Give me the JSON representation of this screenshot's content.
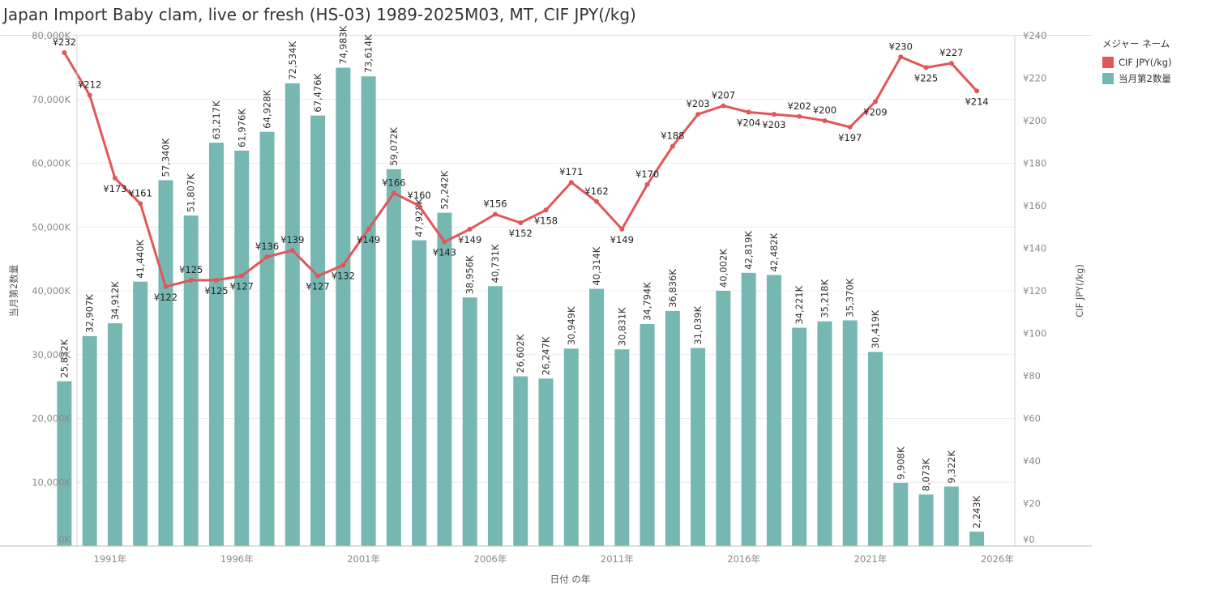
{
  "title": "Japan Import Baby clam, live or fresh (HS-03) 1989-2025M03, MT, CIF JPY(/kg)",
  "legend": {
    "title": "メジャー ネーム",
    "items": [
      {
        "label": "CIF JPY(/kg)",
        "color": "#e15759"
      },
      {
        "label": "当月第2数量",
        "color": "#76b7b2"
      }
    ]
  },
  "chart_data": {
    "type": "bar+line",
    "x": [
      1989,
      1990,
      1991,
      1992,
      1993,
      1994,
      1995,
      1996,
      1997,
      1998,
      1999,
      2000,
      2001,
      2002,
      2003,
      2004,
      2005,
      2006,
      2007,
      2008,
      2009,
      2010,
      2011,
      2012,
      2013,
      2014,
      2015,
      2016,
      2017,
      2018,
      2019,
      2020,
      2021,
      2022,
      2023,
      2024,
      2025
    ],
    "xlabel": "日付 の年",
    "xticks": [
      {
        "year": 1991,
        "label": "1991年"
      },
      {
        "year": 1996,
        "label": "1996年"
      },
      {
        "year": 2001,
        "label": "2001年"
      },
      {
        "year": 2006,
        "label": "2006年"
      },
      {
        "year": 2011,
        "label": "2011年"
      },
      {
        "year": 2016,
        "label": "2016年"
      },
      {
        "year": 2021,
        "label": "2021年"
      },
      {
        "year": 2026,
        "label": "2026年"
      }
    ],
    "xlim": [
      1989.5,
      2026.5
    ],
    "series": [
      {
        "name": "当月第2数量",
        "kind": "bar",
        "axis": "left",
        "color": "#76b7b2",
        "values": [
          25832,
          32907,
          34912,
          41440,
          57340,
          51807,
          63217,
          61976,
          64928,
          72534,
          67476,
          74983,
          73614,
          59072,
          47928,
          52242,
          38956,
          40731,
          26602,
          26247,
          30949,
          40314,
          30831,
          34794,
          36836,
          31039,
          40002,
          42819,
          42482,
          34221,
          35218,
          35370,
          30419,
          9908,
          8073,
          9322,
          2243
        ],
        "labels": [
          "25,832K",
          "32,907K",
          "34,912K",
          "41,440K",
          "57,340K",
          "51,807K",
          "63,217K",
          "61,976K",
          "64,928K",
          "72,534K",
          "67,476K",
          "74,983K",
          "73,614K",
          "59,072K",
          "47,928K",
          "52,242K",
          "38,956K",
          "40,731K",
          "26,602K",
          "26,247K",
          "30,949K",
          "40,314K",
          "30,831K",
          "34,794K",
          "36,836K",
          "31,039K",
          "40,002K",
          "42,819K",
          "42,482K",
          "34,221K",
          "35,218K",
          "35,370K",
          "30,419K",
          "9,908K",
          "8,073K",
          "9,322K",
          "2,243K"
        ]
      },
      {
        "name": "CIF JPY(/kg)",
        "kind": "line",
        "axis": "right",
        "color": "#e15759",
        "values": [
          232,
          212,
          173,
          161,
          122,
          125,
          125,
          127,
          136,
          139,
          127,
          132,
          149,
          166,
          160,
          143,
          149,
          156,
          152,
          158,
          171,
          162,
          149,
          170,
          188,
          203,
          207,
          204,
          203,
          202,
          200,
          197,
          209,
          230,
          225,
          227,
          214
        ],
        "labels": [
          "¥232",
          "¥212",
          "¥173",
          "¥161",
          "¥122",
          "¥125",
          "¥125",
          "¥127",
          "¥136",
          "¥139",
          "¥127",
          "¥132",
          "¥149",
          "¥166",
          "¥160",
          "¥143",
          "¥149",
          "¥156",
          "¥152",
          "¥158",
          "¥171",
          "¥162",
          "¥149",
          "¥170",
          "¥188",
          "¥203",
          "¥207",
          "¥204",
          "¥203",
          "¥202",
          "¥200",
          "¥197",
          "¥209",
          "¥230",
          "¥225",
          "¥227",
          "¥214"
        ],
        "label_pos": [
          "above",
          "above",
          "below",
          "above",
          "below",
          "above",
          "below",
          "below",
          "above",
          "above",
          "below",
          "below",
          "below",
          "above",
          "above",
          "below",
          "below",
          "above",
          "below",
          "below",
          "above",
          "above",
          "below",
          "above",
          "above",
          "above",
          "above",
          "below",
          "below",
          "above",
          "above",
          "below",
          "below",
          "above",
          "below",
          "above",
          "below"
        ]
      }
    ],
    "y_left": {
      "label": "当月第2数量",
      "range": [
        0,
        80000
      ],
      "ticks": [
        0,
        10000,
        20000,
        30000,
        40000,
        50000,
        60000,
        70000,
        80000
      ],
      "tick_labels": [
        "0K",
        "10,000K",
        "20,000K",
        "30,000K",
        "40,000K",
        "50,000K",
        "60,000K",
        "70,000K",
        "80,000K"
      ]
    },
    "y_right": {
      "label": "CIF JPY(/kg)",
      "range": [
        0,
        240
      ],
      "ticks": [
        0,
        20,
        40,
        60,
        80,
        100,
        120,
        140,
        160,
        180,
        200,
        220,
        240
      ],
      "tick_labels": [
        "¥0",
        "¥20",
        "¥40",
        "¥60",
        "¥80",
        "¥100",
        "¥120",
        "¥140",
        "¥160",
        "¥180",
        "¥200",
        "¥220",
        "¥240"
      ]
    },
    "grid": true,
    "legend_position": "top-right"
  }
}
